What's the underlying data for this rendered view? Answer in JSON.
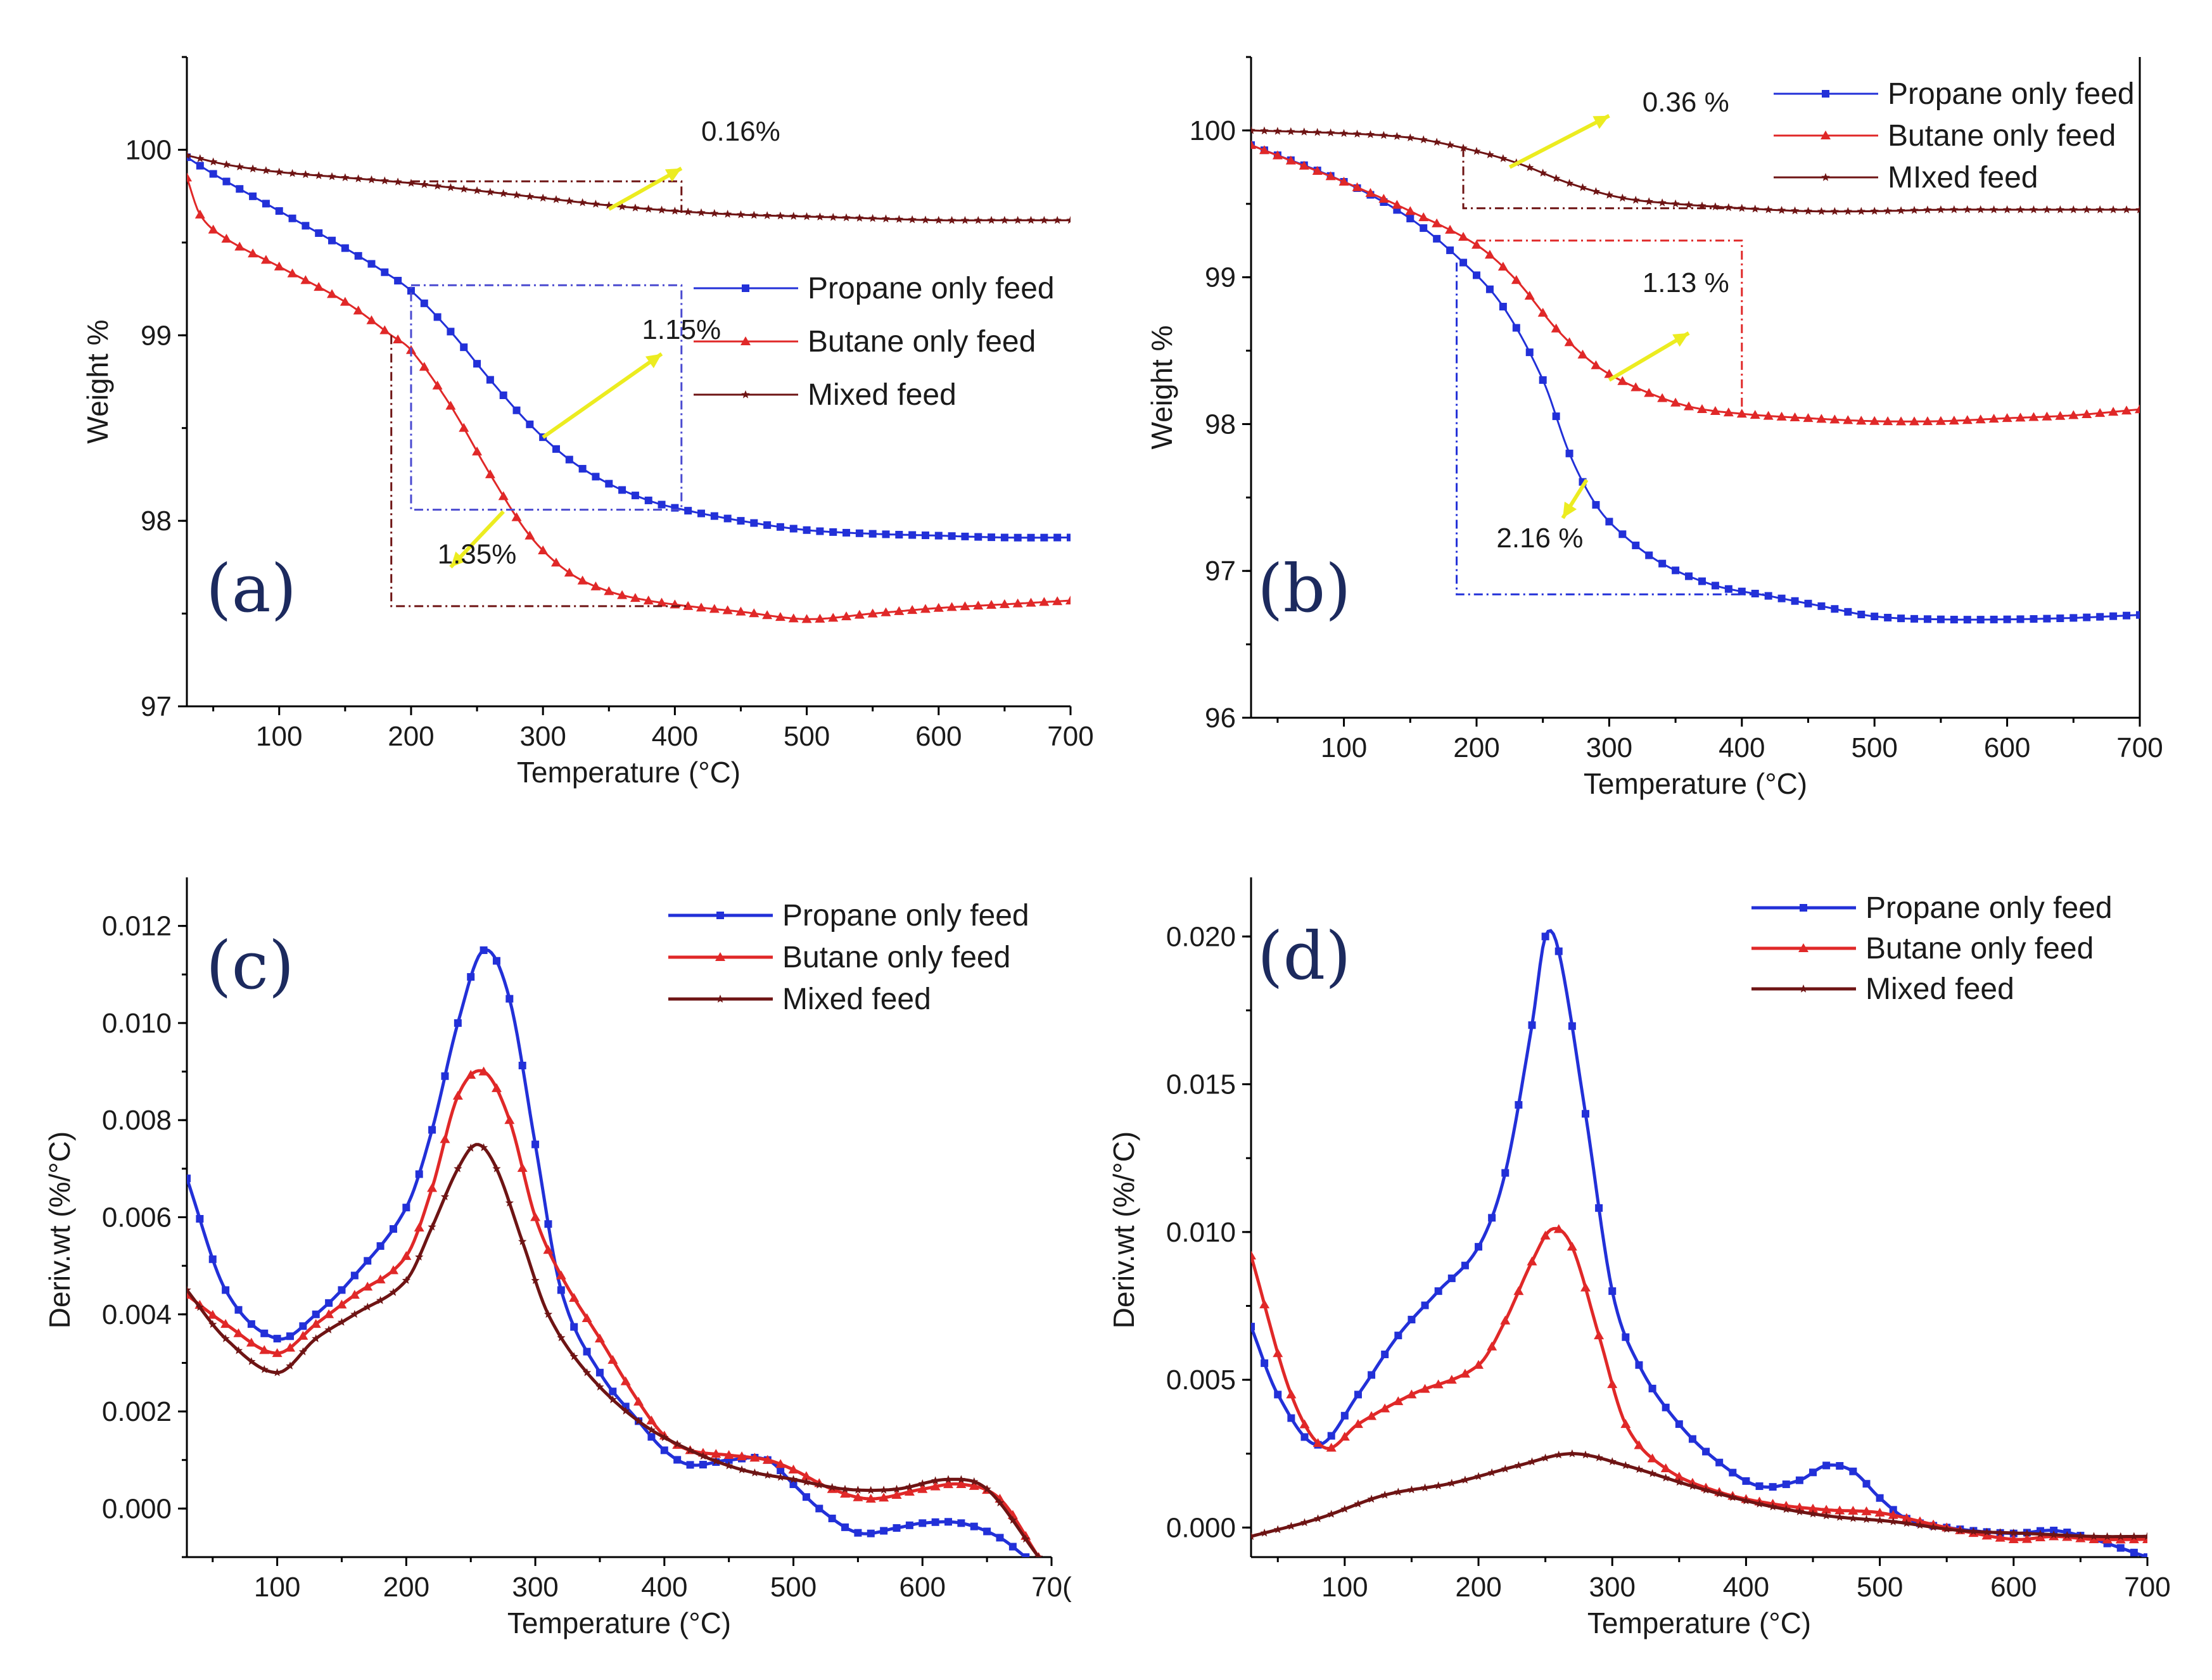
{
  "colors": {
    "propane": "#2230d8",
    "butane": "#e02828",
    "mixed": "#6e1414",
    "arrow": "#ecec20",
    "label": "#1c2a5e"
  },
  "chart_data": [
    {
      "panel": "(a)",
      "type": "line",
      "xlabel": "Temperature (°C)",
      "ylabel": "Weight %",
      "xlim": [
        30,
        700
      ],
      "ylim": [
        97,
        100.5
      ],
      "xticks": [
        "100",
        "200",
        "300",
        "400",
        "500",
        "600",
        "700"
      ],
      "yticks": [
        "97",
        "98",
        "99",
        "100"
      ],
      "legend": [
        "Propane only feed",
        "Butane only feed",
        "Mixed feed"
      ],
      "series": [
        {
          "name": "Propane only feed",
          "x": [
            30,
            50,
            100,
            150,
            180,
            200,
            230,
            260,
            290,
            320,
            350,
            380,
            400,
            450,
            500,
            550,
            600,
            650,
            700
          ],
          "y": [
            99.96,
            99.87,
            99.67,
            99.47,
            99.34,
            99.24,
            99.02,
            98.76,
            98.52,
            98.33,
            98.2,
            98.11,
            98.07,
            98.0,
            97.95,
            97.93,
            97.92,
            97.91,
            97.91
          ]
        },
        {
          "name": "Butane only feed",
          "x": [
            30,
            40,
            60,
            100,
            150,
            185,
            200,
            230,
            260,
            290,
            320,
            350,
            380,
            410,
            450,
            500,
            550,
            600,
            650,
            700
          ],
          "y": [
            99.85,
            99.65,
            99.52,
            99.37,
            99.18,
            99.0,
            98.92,
            98.62,
            98.25,
            97.92,
            97.72,
            97.62,
            97.57,
            97.54,
            97.51,
            97.47,
            97.5,
            97.53,
            97.55,
            97.57
          ]
        },
        {
          "name": "Mixed feed",
          "x": [
            30,
            60,
            100,
            150,
            200,
            250,
            300,
            350,
            400,
            450,
            500,
            550,
            600,
            650,
            700
          ],
          "y": [
            99.97,
            99.92,
            99.88,
            99.85,
            99.82,
            99.78,
            99.74,
            99.7,
            99.67,
            99.65,
            99.64,
            99.63,
            99.62,
            99.62,
            99.62
          ]
        }
      ],
      "annotations": [
        "0.16%",
        "1.15%",
        "1.35%"
      ]
    },
    {
      "panel": "(b)",
      "type": "line",
      "xlabel": "Temperature (°C)",
      "ylabel": "Weight %",
      "xlim": [
        30,
        700
      ],
      "ylim": [
        96,
        100.5
      ],
      "xticks": [
        "100",
        "200",
        "300",
        "400",
        "500",
        "600",
        "700"
      ],
      "yticks": [
        "96",
        "97",
        "98",
        "99",
        "100"
      ],
      "legend": [
        "Propane only feed",
        "Butane only feed",
        "MIxed feed"
      ],
      "series": [
        {
          "name": "Propane only feed",
          "x": [
            30,
            100,
            150,
            190,
            220,
            250,
            270,
            290,
            310,
            340,
            380,
            420,
            460,
            500,
            550,
            600,
            650,
            700
          ],
          "y": [
            99.9,
            99.65,
            99.4,
            99.1,
            98.8,
            98.3,
            97.8,
            97.45,
            97.25,
            97.05,
            96.9,
            96.83,
            96.76,
            96.69,
            96.67,
            96.67,
            96.68,
            96.7
          ]
        },
        {
          "name": "Butane only feed",
          "x": [
            30,
            100,
            150,
            200,
            230,
            260,
            290,
            320,
            360,
            400,
            450,
            500,
            550,
            600,
            650,
            700
          ],
          "y": [
            99.9,
            99.65,
            99.45,
            99.22,
            98.98,
            98.65,
            98.4,
            98.25,
            98.12,
            98.07,
            98.04,
            98.02,
            98.02,
            98.04,
            98.06,
            98.1
          ]
        },
        {
          "name": "MIxed feed",
          "x": [
            30,
            100,
            150,
            190,
            230,
            270,
            310,
            350,
            400,
            450,
            500,
            550,
            600,
            650,
            700
          ],
          "y": [
            100.0,
            99.98,
            99.95,
            99.88,
            99.78,
            99.64,
            99.54,
            99.5,
            99.47,
            99.45,
            99.45,
            99.46,
            99.46,
            99.46,
            99.46
          ]
        }
      ],
      "annotations": [
        "0.36 %",
        "1.13 %",
        "2.16 %"
      ]
    },
    {
      "panel": "(c)",
      "type": "line",
      "xlabel": "Temperature (°C)",
      "ylabel": "Deriv.wt (%/°C)",
      "xlim": [
        30,
        700
      ],
      "ylim": [
        -0.001,
        0.013
      ],
      "xticks": [
        "100",
        "200",
        "300",
        "400",
        "500",
        "600",
        "70("
      ],
      "yticks": [
        "0.000",
        "0.002",
        "0.004",
        "0.006",
        "0.008",
        "0.010",
        "0.012"
      ],
      "legend": [
        "Propane only feed",
        "Butane only feed",
        "Mixed feed"
      ],
      "series": [
        {
          "name": "Propane only feed",
          "x": [
            30,
            60,
            100,
            130,
            160,
            200,
            220,
            240,
            260,
            280,
            300,
            320,
            350,
            380,
            400,
            420,
            450,
            480,
            500,
            520,
            550,
            580,
            600,
            630,
            660,
            680
          ],
          "y": [
            0.0068,
            0.0045,
            0.0035,
            0.004,
            0.0048,
            0.0062,
            0.0078,
            0.01,
            0.0115,
            0.0105,
            0.0075,
            0.0045,
            0.0028,
            0.0018,
            0.0012,
            0.0009,
            0.001,
            0.001,
            0.0005,
            0.0,
            -0.0005,
            -0.0004,
            -0.0003,
            -0.0003,
            -0.0006,
            -0.001
          ]
        },
        {
          "name": "Butane only feed",
          "x": [
            30,
            60,
            100,
            130,
            160,
            200,
            220,
            240,
            260,
            280,
            300,
            320,
            350,
            380,
            400,
            420,
            450,
            480,
            500,
            530,
            560,
            600,
            630,
            660,
            690
          ],
          "y": [
            0.0044,
            0.0038,
            0.0032,
            0.0038,
            0.0044,
            0.0052,
            0.0066,
            0.0085,
            0.009,
            0.008,
            0.006,
            0.0048,
            0.0035,
            0.0022,
            0.0015,
            0.0012,
            0.0011,
            0.001,
            0.0008,
            0.0004,
            0.0002,
            0.0004,
            0.0005,
            0.0002,
            -0.001
          ]
        },
        {
          "name": "Mixed feed",
          "x": [
            30,
            60,
            100,
            130,
            160,
            200,
            220,
            240,
            255,
            270,
            290,
            310,
            340,
            380,
            420,
            460,
            500,
            540,
            580,
            620,
            650,
            690
          ],
          "y": [
            0.0045,
            0.0035,
            0.0028,
            0.0035,
            0.004,
            0.0047,
            0.0058,
            0.007,
            0.0075,
            0.007,
            0.0055,
            0.004,
            0.0028,
            0.0018,
            0.0012,
            0.0008,
            0.0006,
            0.0004,
            0.0004,
            0.0006,
            0.0004,
            -0.001
          ]
        }
      ]
    },
    {
      "panel": "(d)",
      "type": "line",
      "xlabel": "Temperature (°C)",
      "ylabel": "Deriv.wt (%/°C)",
      "xlim": [
        30,
        700
      ],
      "ylim": [
        -0.001,
        0.022
      ],
      "xticks": [
        "100",
        "200",
        "300",
        "400",
        "500",
        "600",
        "700"
      ],
      "yticks": [
        "0.000",
        "0.005",
        "0.010",
        "0.015",
        "0.020"
      ],
      "legend": [
        "Propane only feed",
        "Butane only feed",
        "Mixed feed"
      ],
      "series": [
        {
          "name": "Propane only feed",
          "x": [
            30,
            50,
            80,
            110,
            140,
            170,
            200,
            220,
            240,
            250,
            260,
            280,
            300,
            320,
            350,
            380,
            410,
            440,
            460,
            480,
            500,
            520,
            550,
            600,
            630,
            660,
            700
          ],
          "y": [
            0.0068,
            0.0045,
            0.0028,
            0.0045,
            0.0065,
            0.008,
            0.0095,
            0.012,
            0.017,
            0.02,
            0.0195,
            0.014,
            0.008,
            0.0055,
            0.0035,
            0.0022,
            0.0014,
            0.0016,
            0.0021,
            0.0019,
            0.001,
            0.0003,
            0.0,
            -0.0002,
            -0.0001,
            -0.0004,
            -0.001
          ]
        },
        {
          "name": "Butane only feed",
          "x": [
            30,
            60,
            85,
            110,
            150,
            200,
            220,
            240,
            255,
            270,
            290,
            310,
            340,
            380,
            420,
            460,
            500,
            550,
            600,
            630,
            660,
            700
          ],
          "y": [
            0.0092,
            0.0045,
            0.0027,
            0.0035,
            0.0045,
            0.0055,
            0.007,
            0.009,
            0.0101,
            0.0095,
            0.0065,
            0.0035,
            0.002,
            0.0012,
            0.0008,
            0.0006,
            0.0005,
            0.0,
            -0.0004,
            -0.0003,
            -0.0004,
            -0.0004
          ]
        },
        {
          "name": "Mixed feed",
          "x": [
            30,
            80,
            130,
            180,
            230,
            270,
            310,
            360,
            410,
            460,
            510,
            560,
            610,
            660,
            700
          ],
          "y": [
            -0.0003,
            0.0003,
            0.0011,
            0.0015,
            0.0021,
            0.0025,
            0.0021,
            0.0014,
            0.0008,
            0.0004,
            0.0002,
            -0.0001,
            -0.0002,
            -0.0003,
            -0.0003
          ]
        }
      ]
    }
  ]
}
